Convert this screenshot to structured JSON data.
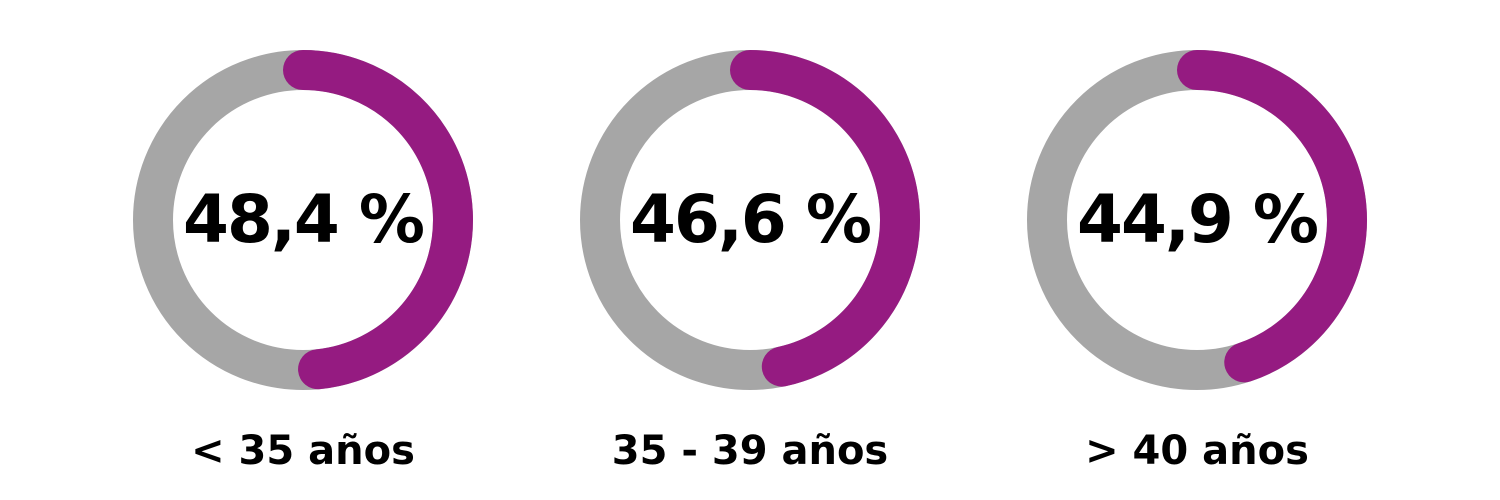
{
  "chart_data": {
    "type": "donut",
    "categories": [
      "< 35 años",
      "35 - 39 años",
      "> 40 años"
    ],
    "values": [
      48.4,
      46.6,
      44.9
    ],
    "value_labels": [
      "48,4 %",
      "46,6 %",
      "44,9 %"
    ],
    "color": "#951b81",
    "track_color": "#a6a6a6"
  }
}
